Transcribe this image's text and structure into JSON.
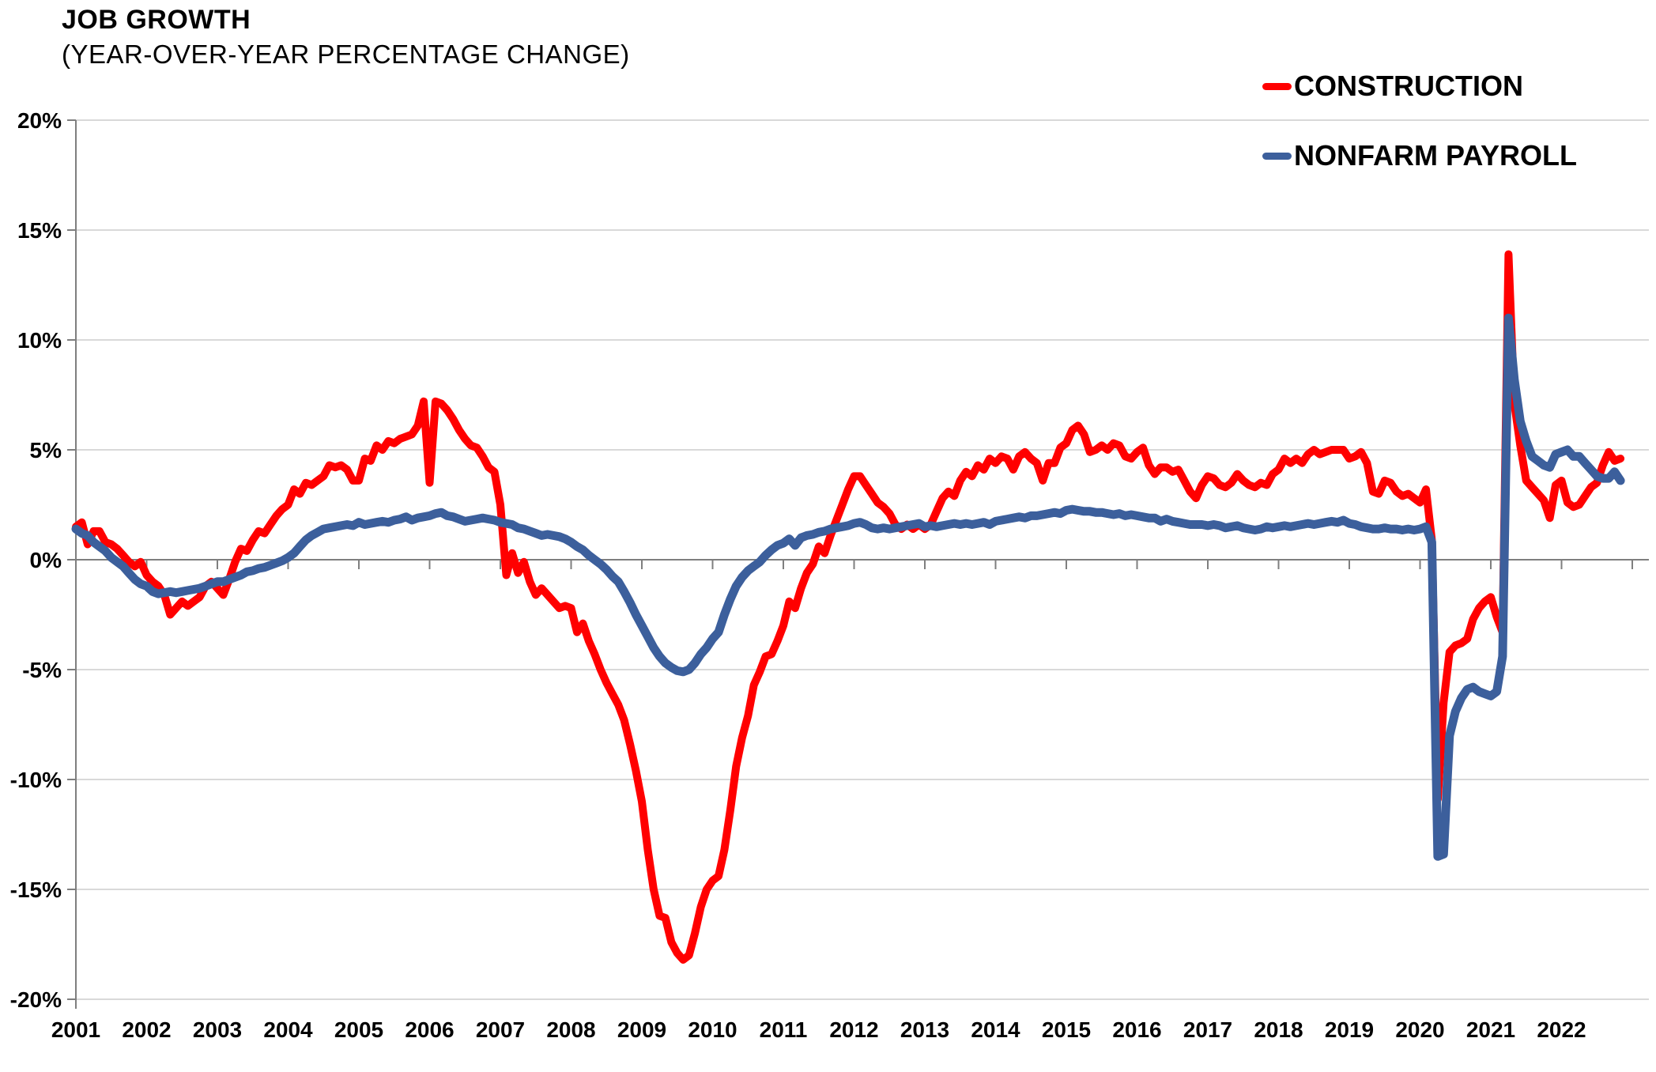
{
  "header": {
    "title": "JOB GROWTH",
    "subtitle": "(YEAR-OVER-YEAR PERCENTAGE CHANGE)"
  },
  "legend": [
    {
      "label": "CONSTRUCTION",
      "color": "#FF0000"
    },
    {
      "label": "NONFARM PAYROLL",
      "color": "#3C5F9C"
    }
  ],
  "colors": {
    "construction": "#FF0000",
    "nonfarm_payroll": "#3C5F9C",
    "gridline": "#D9D9D9",
    "axis": "#7F7F7F",
    "text": "#000000",
    "background": "#FFFFFF"
  },
  "chart_data": {
    "type": "line",
    "title": "JOB GROWTH",
    "subtitle": "(YEAR-OVER-YEAR PERCENTAGE CHANGE)",
    "xlabel": "",
    "ylabel": "",
    "frequency": "monthly",
    "x_start": "2001-01",
    "x_end": "2022-11",
    "ylim": [
      -20,
      20
    ],
    "y_tick_step": 5,
    "y_tick_values": [
      20,
      15,
      10,
      5,
      0,
      -5,
      -10,
      -15,
      -20
    ],
    "y_tick_labels": [
      "20%",
      "15%",
      "10%",
      "5%",
      "0%",
      "-5%",
      "-10%",
      "-15%",
      "-20%"
    ],
    "x_tick_labels": [
      "2001",
      "2002",
      "2003",
      "2004",
      "2005",
      "2006",
      "2007",
      "2008",
      "2009",
      "2010",
      "2011",
      "2012",
      "2013",
      "2014",
      "2015",
      "2016",
      "2017",
      "2018",
      "2019",
      "2020",
      "2021",
      "2022"
    ],
    "grid": "horizontal",
    "legend_position": "top-right",
    "series": [
      {
        "name": "CONSTRUCTION",
        "color": "#FF0000",
        "values": [
          1.5,
          1.7,
          0.7,
          1.3,
          1.3,
          0.8,
          0.7,
          0.5,
          0.2,
          -0.1,
          -0.3,
          -0.1,
          -0.7,
          -1.0,
          -1.2,
          -1.6,
          -2.5,
          -2.2,
          -1.9,
          -2.1,
          -1.9,
          -1.7,
          -1.2,
          -1.0,
          -1.3,
          -1.6,
          -0.9,
          -0.1,
          0.5,
          0.4,
          0.9,
          1.3,
          1.2,
          1.6,
          2.0,
          2.3,
          2.5,
          3.2,
          3.0,
          3.5,
          3.4,
          3.6,
          3.8,
          4.3,
          4.2,
          4.3,
          4.1,
          3.6,
          3.6,
          4.6,
          4.5,
          5.2,
          5.0,
          5.4,
          5.3,
          5.5,
          5.6,
          5.7,
          6.1,
          7.2,
          3.5,
          7.2,
          7.1,
          6.8,
          6.4,
          5.9,
          5.5,
          5.2,
          5.1,
          4.7,
          4.2,
          4.0,
          2.5,
          -0.7,
          0.3,
          -0.6,
          -0.1,
          -1.0,
          -1.6,
          -1.3,
          -1.6,
          -1.9,
          -2.2,
          -2.1,
          -2.2,
          -3.3,
          -2.9,
          -3.7,
          -4.3,
          -5.0,
          -5.6,
          -6.1,
          -6.6,
          -7.3,
          -8.4,
          -9.6,
          -11.0,
          -13.2,
          -15.0,
          -16.2,
          -16.3,
          -17.4,
          -17.9,
          -18.2,
          -18.0,
          -17.0,
          -15.8,
          -15.0,
          -14.6,
          -14.4,
          -13.2,
          -11.4,
          -9.4,
          -8.1,
          -7.1,
          -5.7,
          -5.1,
          -4.4,
          -4.3,
          -3.7,
          -3.0,
          -1.9,
          -2.2,
          -1.3,
          -0.6,
          -0.2,
          0.6,
          0.3,
          1.1,
          1.8,
          2.5,
          3.2,
          3.8,
          3.8,
          3.4,
          3.0,
          2.6,
          2.4,
          2.1,
          1.6,
          1.4,
          1.6,
          1.4,
          1.6,
          1.4,
          1.6,
          2.2,
          2.8,
          3.1,
          2.9,
          3.6,
          4.0,
          3.8,
          4.3,
          4.1,
          4.6,
          4.4,
          4.7,
          4.6,
          4.1,
          4.7,
          4.9,
          4.6,
          4.4,
          3.6,
          4.4,
          4.4,
          5.1,
          5.3,
          5.9,
          6.1,
          5.7,
          4.9,
          5.0,
          5.2,
          5.0,
          5.3,
          5.2,
          4.7,
          4.6,
          4.9,
          5.1,
          4.3,
          3.9,
          4.2,
          4.2,
          4.0,
          4.1,
          3.6,
          3.1,
          2.8,
          3.4,
          3.8,
          3.7,
          3.4,
          3.3,
          3.5,
          3.9,
          3.6,
          3.4,
          3.3,
          3.5,
          3.4,
          3.9,
          4.1,
          4.6,
          4.4,
          4.6,
          4.4,
          4.8,
          5.0,
          4.8,
          4.9,
          5.0,
          5.0,
          5.0,
          4.6,
          4.7,
          4.9,
          4.4,
          3.1,
          3.0,
          3.6,
          3.5,
          3.1,
          2.9,
          3.0,
          2.8,
          2.6,
          3.2,
          0.9,
          -10.9,
          -6.5,
          -4.2,
          -3.9,
          -3.8,
          -3.6,
          -2.7,
          -2.2,
          -1.9,
          -1.7,
          -2.6,
          -3.3,
          13.9,
          7.1,
          5.2,
          3.6,
          3.3,
          3.0,
          2.7,
          1.9,
          3.4,
          3.6,
          2.6,
          2.4,
          2.5,
          2.9,
          3.3,
          3.5,
          4.3,
          4.9,
          4.5,
          4.6
        ]
      },
      {
        "name": "NONFARM PAYROLL",
        "color": "#3C5F9C",
        "values": [
          1.4,
          1.2,
          1.1,
          0.8,
          0.6,
          0.4,
          0.1,
          -0.1,
          -0.3,
          -0.6,
          -0.9,
          -1.1,
          -1.2,
          -1.45,
          -1.55,
          -1.5,
          -1.45,
          -1.5,
          -1.45,
          -1.4,
          -1.35,
          -1.3,
          -1.2,
          -1.1,
          -1.0,
          -1.0,
          -0.9,
          -0.8,
          -0.7,
          -0.55,
          -0.5,
          -0.4,
          -0.35,
          -0.25,
          -0.15,
          -0.05,
          0.1,
          0.3,
          0.6,
          0.9,
          1.1,
          1.25,
          1.4,
          1.45,
          1.5,
          1.55,
          1.6,
          1.55,
          1.7,
          1.6,
          1.65,
          1.7,
          1.75,
          1.7,
          1.8,
          1.85,
          1.95,
          1.8,
          1.9,
          1.95,
          2.0,
          2.1,
          2.15,
          2.0,
          1.95,
          1.85,
          1.75,
          1.8,
          1.85,
          1.9,
          1.85,
          1.8,
          1.7,
          1.65,
          1.6,
          1.45,
          1.4,
          1.3,
          1.2,
          1.1,
          1.15,
          1.1,
          1.05,
          0.95,
          0.8,
          0.6,
          0.45,
          0.2,
          0.0,
          -0.2,
          -0.45,
          -0.75,
          -1.0,
          -1.45,
          -1.95,
          -2.5,
          -3.0,
          -3.5,
          -4.0,
          -4.4,
          -4.7,
          -4.9,
          -5.05,
          -5.1,
          -5.0,
          -4.7,
          -4.3,
          -4.0,
          -3.6,
          -3.3,
          -2.5,
          -1.8,
          -1.2,
          -0.8,
          -0.5,
          -0.3,
          -0.1,
          0.2,
          0.45,
          0.65,
          0.75,
          0.95,
          0.65,
          1.0,
          1.1,
          1.15,
          1.25,
          1.3,
          1.4,
          1.45,
          1.5,
          1.55,
          1.65,
          1.7,
          1.6,
          1.45,
          1.4,
          1.45,
          1.4,
          1.45,
          1.5,
          1.55,
          1.6,
          1.65,
          1.5,
          1.55,
          1.5,
          1.55,
          1.6,
          1.65,
          1.6,
          1.65,
          1.6,
          1.65,
          1.7,
          1.6,
          1.75,
          1.8,
          1.85,
          1.9,
          1.95,
          1.9,
          2.0,
          2.0,
          2.05,
          2.1,
          2.15,
          2.1,
          2.25,
          2.3,
          2.25,
          2.2,
          2.2,
          2.15,
          2.15,
          2.1,
          2.05,
          2.1,
          2.0,
          2.05,
          2.0,
          1.95,
          1.9,
          1.9,
          1.75,
          1.85,
          1.75,
          1.7,
          1.65,
          1.6,
          1.6,
          1.6,
          1.55,
          1.6,
          1.55,
          1.45,
          1.5,
          1.55,
          1.45,
          1.4,
          1.35,
          1.4,
          1.5,
          1.45,
          1.5,
          1.55,
          1.5,
          1.55,
          1.6,
          1.65,
          1.6,
          1.65,
          1.7,
          1.75,
          1.7,
          1.8,
          1.65,
          1.6,
          1.5,
          1.45,
          1.4,
          1.4,
          1.45,
          1.4,
          1.4,
          1.35,
          1.4,
          1.35,
          1.4,
          1.5,
          0.8,
          -13.5,
          -13.4,
          -8.0,
          -6.9,
          -6.3,
          -5.9,
          -5.8,
          -6.0,
          -6.1,
          -6.2,
          -6.0,
          -4.4,
          11.0,
          8.2,
          6.3,
          5.4,
          4.7,
          4.5,
          4.3,
          4.2,
          4.8,
          4.9,
          5.0,
          4.7,
          4.7,
          4.4,
          4.1,
          3.8,
          3.7,
          3.7,
          4.0,
          3.6
        ]
      }
    ]
  }
}
